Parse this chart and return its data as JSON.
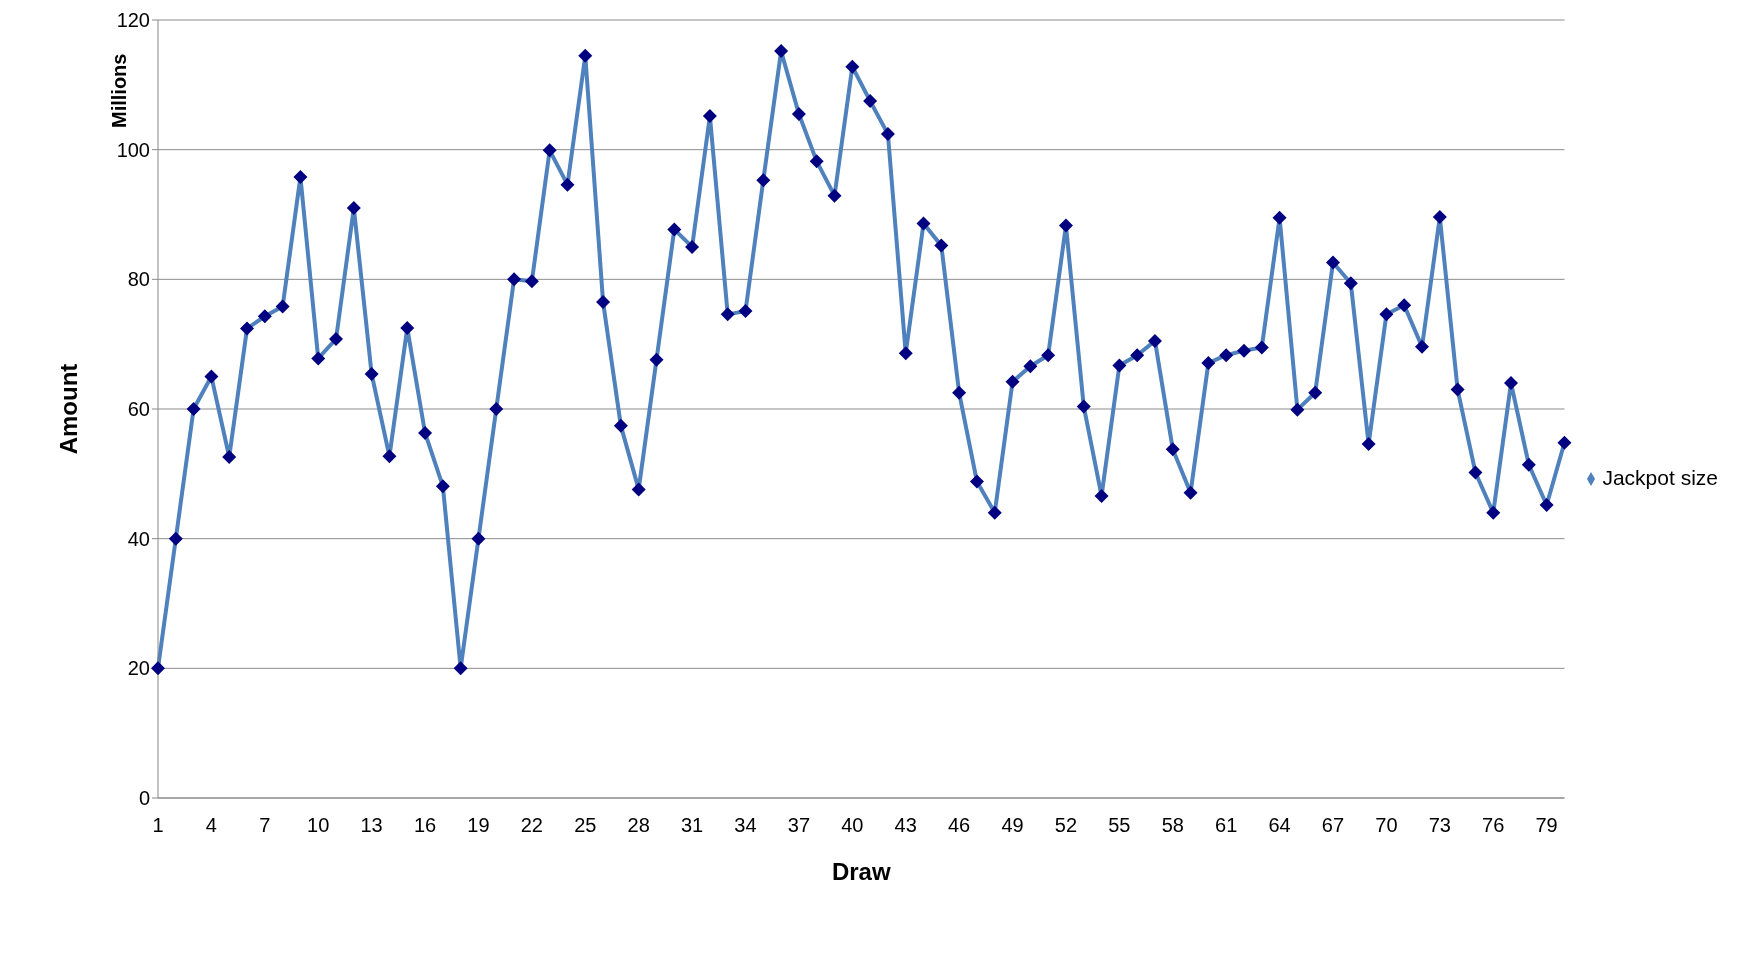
{
  "chart_data": {
    "type": "line",
    "xlabel": "Draw",
    "ylabel": "Amount",
    "annotations": [
      "Millions"
    ],
    "categories": [
      "1",
      null,
      null,
      "4",
      null,
      null,
      "7",
      null,
      null,
      "10",
      null,
      null,
      "13",
      null,
      null,
      "16",
      null,
      null,
      "19",
      null,
      null,
      "22",
      null,
      null,
      "25",
      null,
      null,
      "28",
      null,
      null,
      "31",
      null,
      null,
      "34",
      null,
      null,
      "37",
      null,
      null,
      "40",
      null,
      null,
      "43",
      null,
      null,
      "46",
      null,
      null,
      "49",
      null,
      null,
      "52",
      null,
      null,
      "55",
      null,
      null,
      "58",
      null,
      null,
      "61",
      null,
      null,
      "64",
      null,
      null,
      "67",
      null,
      null,
      "70",
      null,
      null,
      "73",
      null,
      null,
      "76",
      null,
      null,
      "79",
      null
    ],
    "series": [
      {
        "name": "Jackpot size",
        "color": "#4f81bd",
        "values": [
          20,
          40,
          60,
          65,
          52.6,
          72.4,
          74.3,
          75.8,
          95.8,
          67.8,
          70.8,
          91,
          65.4,
          52.7,
          72.5,
          56.3,
          48.1,
          20,
          40,
          60,
          80,
          79.7,
          99.9,
          94.6,
          114.5,
          76.5,
          57.4,
          47.6,
          67.6,
          87.7,
          85,
          105.2,
          74.6,
          75.1,
          95.3,
          115.2,
          105.5,
          98.2,
          92.9,
          112.8,
          107.5,
          102.4,
          68.6,
          88.6,
          85.2,
          62.5,
          48.8,
          44,
          64.2,
          66.6,
          68.3,
          88.3,
          60.4,
          46.6,
          66.7,
          68.3,
          70.5,
          53.8,
          47.1,
          67.1,
          68.3,
          69,
          69.5,
          89.5,
          59.9,
          62.5,
          82.6,
          79.4,
          54.6,
          74.6,
          76,
          69.6,
          89.6,
          63,
          50.2,
          44,
          64,
          51.4,
          45.2,
          54.8
        ]
      }
    ],
    "ylim": [
      0,
      120
    ],
    "yticks": [
      0,
      20,
      40,
      60,
      80,
      100,
      120
    ],
    "grid": "y",
    "legend": "right",
    "marker": "diamond",
    "line_style": "solid"
  }
}
